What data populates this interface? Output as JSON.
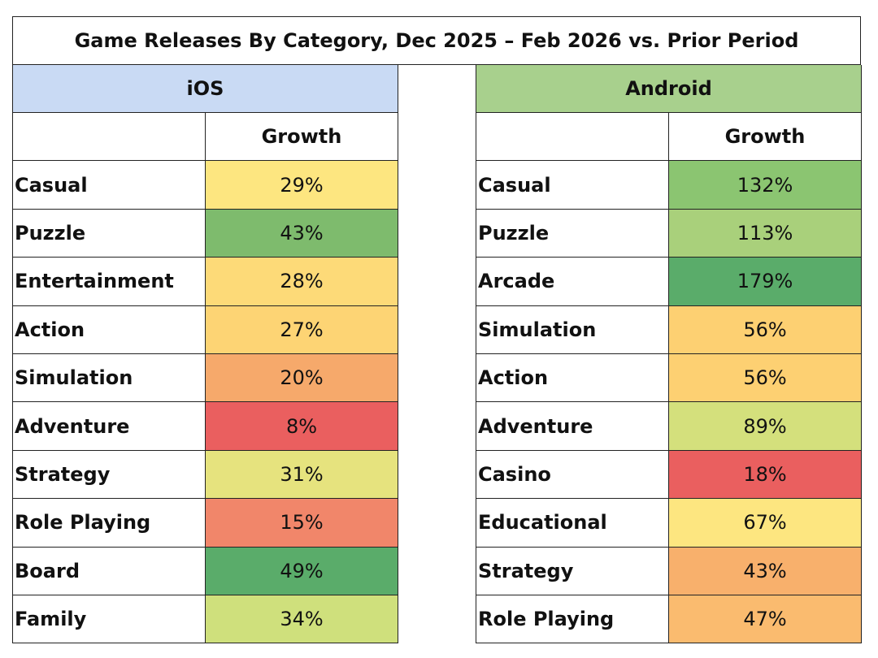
{
  "chart_data": {
    "type": "table",
    "title": "Game Releases By Category, Dec 2025 – Feb 2026 vs. Prior Period",
    "column_header": "Growth",
    "panels": [
      {
        "name": "iOS",
        "header_color": "#c9daf4",
        "rows": [
          {
            "category": "Casual",
            "value": "29%",
            "color": "#fde680"
          },
          {
            "category": "Puzzle",
            "value": "43%",
            "color": "#7ebb6d"
          },
          {
            "category": "Entertainment",
            "value": "28%",
            "color": "#fdda78"
          },
          {
            "category": "Action",
            "value": "27%",
            "color": "#fdd474"
          },
          {
            "category": "Simulation",
            "value": "20%",
            "color": "#f6a96b"
          },
          {
            "category": "Adventure",
            "value": "8%",
            "color": "#ea5f5f"
          },
          {
            "category": "Strategy",
            "value": "31%",
            "color": "#e6e37e"
          },
          {
            "category": "Role Playing",
            "value": "15%",
            "color": "#f1866a"
          },
          {
            "category": "Board",
            "value": "49%",
            "color": "#5aac6a"
          },
          {
            "category": "Family",
            "value": "34%",
            "color": "#cfe07c"
          }
        ]
      },
      {
        "name": "Android",
        "header_color": "#a8d08d",
        "rows": [
          {
            "category": "Casual",
            "value": "132%",
            "color": "#8bc571"
          },
          {
            "category": "Puzzle",
            "value": "113%",
            "color": "#a9d07b"
          },
          {
            "category": "Arcade",
            "value": "179%",
            "color": "#5aac6a"
          },
          {
            "category": "Simulation",
            "value": "56%",
            "color": "#fdd072"
          },
          {
            "category": "Action",
            "value": "56%",
            "color": "#fdd072"
          },
          {
            "category": "Adventure",
            "value": "89%",
            "color": "#d4e07c"
          },
          {
            "category": "Casino",
            "value": "18%",
            "color": "#ea5f5f"
          },
          {
            "category": "Educational",
            "value": "67%",
            "color": "#fde680"
          },
          {
            "category": "Strategy",
            "value": "43%",
            "color": "#f8b06c"
          },
          {
            "category": "Role Playing",
            "value": "47%",
            "color": "#fabb6f"
          }
        ]
      }
    ]
  }
}
